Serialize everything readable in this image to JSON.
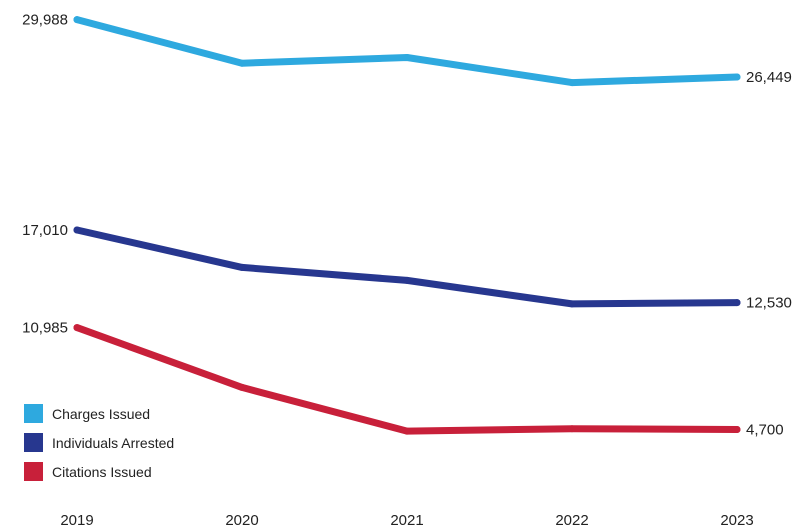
{
  "chart_data": {
    "type": "line",
    "x": [
      "2019",
      "2020",
      "2021",
      "2022",
      "2023"
    ],
    "series": [
      {
        "name": "Charges Issued",
        "color": "#2ea9df",
        "values": [
          29988,
          27300,
          27650,
          26100,
          26449
        ],
        "start_label": "29,988",
        "end_label": "26,449"
      },
      {
        "name": "Individuals Arrested",
        "color": "#27378f",
        "values": [
          17010,
          14700,
          13900,
          12450,
          12530
        ],
        "start_label": "17,010",
        "end_label": "12,530"
      },
      {
        "name": "Citations Issued",
        "color": "#c8203a",
        "values": [
          10985,
          7300,
          4600,
          4750,
          4700
        ],
        "start_label": "10,985",
        "end_label": "4,700"
      }
    ],
    "ylim": [
      0,
      31000
    ],
    "grid": false,
    "legend": "bottom-left",
    "title": "",
    "xlabel": "",
    "ylabel": ""
  }
}
